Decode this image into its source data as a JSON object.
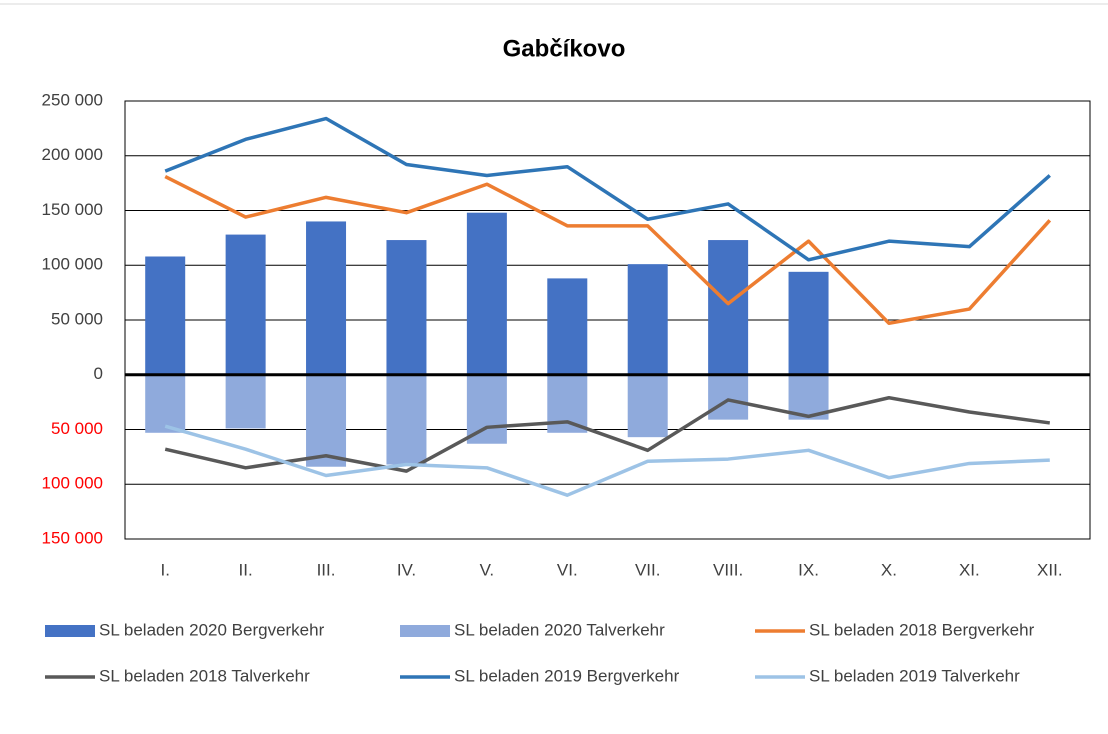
{
  "chart_data": {
    "type": "combo",
    "title": "Gabčíkovo",
    "categories": [
      "I.",
      "II.",
      "III.",
      "IV.",
      "V.",
      "VI.",
      "VII.",
      "VIII.",
      "IX.",
      "X.",
      "XI.",
      "XII."
    ],
    "ylim": [
      -150000,
      250000
    ],
    "yticks": [
      {
        "value": 250000,
        "label": "250 000"
      },
      {
        "value": 200000,
        "label": "200 000"
      },
      {
        "value": 150000,
        "label": "150 000"
      },
      {
        "value": 100000,
        "label": "100 000"
      },
      {
        "value": 50000,
        "label": "50 000"
      },
      0,
      {
        "value": -50000,
        "label": "50 000"
      },
      {
        "value": -100000,
        "label": "100 000"
      },
      {
        "value": -150000,
        "label": "150 000"
      }
    ],
    "negative_tick_color": "#ff0000",
    "grid": true,
    "legend": "bottom",
    "series": [
      {
        "name": "SL beladen 2020 Bergverkehr",
        "type": "bar",
        "color": "#4472c4",
        "values": [
          108000,
          128000,
          140000,
          123000,
          148000,
          88000,
          101000,
          123000,
          94000,
          null,
          null,
          null
        ]
      },
      {
        "name": "SL beladen 2020 Talverkehr",
        "type": "bar",
        "color": "#8faadc",
        "values": [
          -53000,
          -49000,
          -84000,
          -82000,
          -63000,
          -53000,
          -57000,
          -41000,
          -41000,
          null,
          null,
          null
        ]
      },
      {
        "name": "SL beladen 2018 Bergverkehr",
        "type": "line",
        "color": "#ed7d31",
        "values": [
          181000,
          144000,
          162000,
          148000,
          174000,
          136000,
          136000,
          65000,
          122000,
          47000,
          60000,
          141000
        ]
      },
      {
        "name": "SL beladen 2018 Talverkehr",
        "type": "line",
        "color": "#595959",
        "values": [
          -68000,
          -85000,
          -74000,
          -88000,
          -48000,
          -43000,
          -69000,
          -23000,
          -38000,
          -21000,
          -34000,
          -44000
        ]
      },
      {
        "name": "SL beladen 2019 Bergverkehr",
        "type": "line",
        "color": "#2e75b6",
        "values": [
          186000,
          215000,
          234000,
          192000,
          182000,
          190000,
          142000,
          156000,
          105000,
          122000,
          117000,
          182000
        ]
      },
      {
        "name": "SL beladen 2019 Talverkehr",
        "type": "line",
        "color": "#9dc3e6",
        "values": [
          -47000,
          -68000,
          -92000,
          -82000,
          -85000,
          -110000,
          -79000,
          -77000,
          -69000,
          -94000,
          -81000,
          -78000
        ]
      }
    ]
  }
}
